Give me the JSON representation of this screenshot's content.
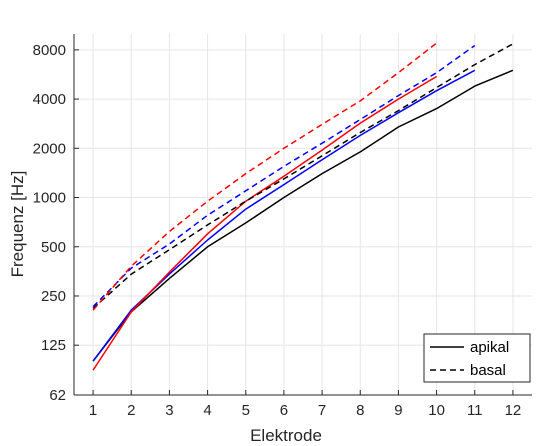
{
  "chart_data": {
    "type": "line",
    "xlabel": "Elektrode",
    "ylabel": "Frequenz [Hz]",
    "x_scale": "linear",
    "y_scale": "log2",
    "xlim": [
      0.5,
      12.5
    ],
    "ylim": [
      62,
      10000
    ],
    "xticks": [
      1,
      2,
      3,
      4,
      5,
      6,
      7,
      8,
      9,
      10,
      11,
      12
    ],
    "xtick_labels": [
      "1",
      "2",
      "3",
      "4",
      "5",
      "6",
      "7",
      "8",
      "9",
      "10",
      "11",
      "12"
    ],
    "yticks": [
      62,
      125,
      250,
      500,
      1000,
      2000,
      4000,
      8000
    ],
    "ytick_labels": [
      "62",
      "125",
      "250",
      "500",
      "1000",
      "2000",
      "4000",
      "8000"
    ],
    "grid": true,
    "legend_position": "bottom-right",
    "legend": [
      {
        "label": "apikal",
        "style": "solid",
        "color": "#000000"
      },
      {
        "label": "basal",
        "style": "dashed",
        "color": "#000000"
      }
    ],
    "series": [
      {
        "color": "#000000",
        "style": "solid",
        "x": [
          1,
          2,
          3,
          4,
          5,
          6,
          7,
          8,
          9,
          10,
          11,
          12
        ],
        "y": [
          100,
          200,
          320,
          500,
          700,
          1000,
          1400,
          1900,
          2700,
          3500,
          4800,
          6000
        ]
      },
      {
        "color": "#0000ff",
        "style": "solid",
        "x": [
          1,
          2,
          3,
          4,
          5,
          6,
          7,
          8,
          9,
          10,
          11
        ],
        "y": [
          100,
          205,
          340,
          550,
          850,
          1200,
          1700,
          2400,
          3300,
          4500,
          6000
        ]
      },
      {
        "color": "#ff0000",
        "style": "solid",
        "x": [
          1,
          2,
          3,
          4,
          5,
          6,
          7,
          8,
          9,
          10
        ],
        "y": [
          88,
          200,
          350,
          600,
          950,
          1350,
          1950,
          2850,
          4000,
          5500
        ]
      },
      {
        "color": "#000000",
        "style": "dashed",
        "x": [
          1,
          2,
          3,
          4,
          5,
          6,
          7,
          8,
          9,
          10,
          11,
          12
        ],
        "y": [
          210,
          340,
          480,
          680,
          950,
          1300,
          1800,
          2500,
          3400,
          4700,
          6500,
          8700
        ]
      },
      {
        "color": "#0000ff",
        "style": "dashed",
        "x": [
          1,
          2,
          3,
          4,
          5,
          6,
          7,
          8,
          9,
          10,
          11
        ],
        "y": [
          215,
          370,
          520,
          780,
          1100,
          1550,
          2150,
          3000,
          4200,
          5800,
          8500
        ]
      },
      {
        "color": "#ff0000",
        "style": "dashed",
        "x": [
          1,
          2,
          3,
          4,
          5,
          6,
          7,
          8,
          9,
          10
        ],
        "y": [
          205,
          380,
          620,
          950,
          1400,
          2000,
          2800,
          3900,
          5800,
          8800
        ]
      }
    ]
  }
}
